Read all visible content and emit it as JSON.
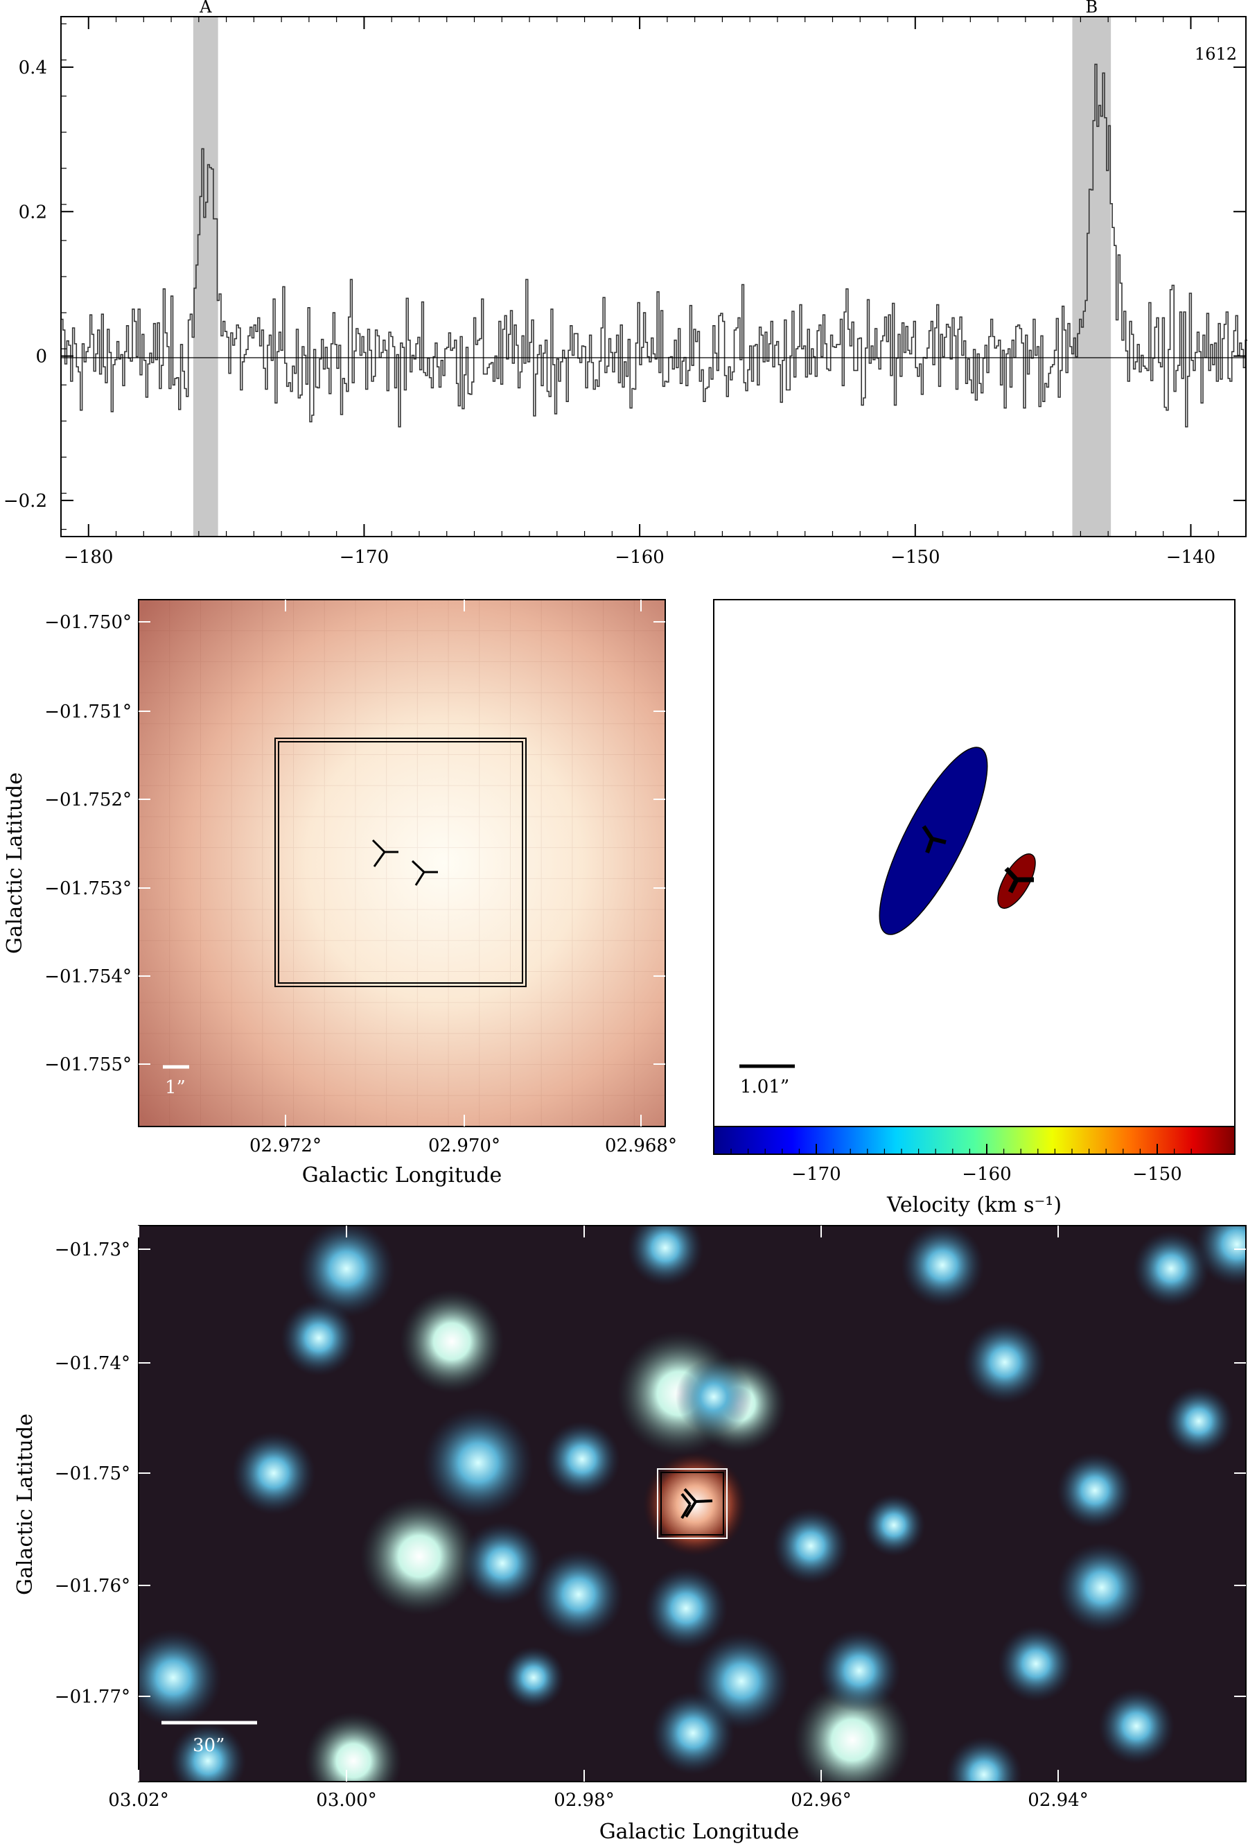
{
  "spectrum": {
    "corner_label": "1612",
    "x_ticks": [
      "−180",
      "−170",
      "−160",
      "−150",
      "−140"
    ],
    "y_ticks": [
      "0.4",
      "0.2",
      "0",
      "−0.2"
    ],
    "bands": [
      {
        "label": "A",
        "from": -176.2,
        "to": -175.3
      },
      {
        "label": "B",
        "from": -144.3,
        "to": -142.9
      }
    ]
  },
  "cutout_left": {
    "x_ticks": [
      "02.972°",
      "02.970°",
      "02.968°"
    ],
    "y_ticks": [
      "−01.750°",
      "−01.751°",
      "−01.752°",
      "−01.753°",
      "−01.754°",
      "−01.755°"
    ],
    "xlabel": "Galactic Longitude",
    "ylabel": "Galactic Latitude",
    "scale_label": "1”"
  },
  "velocity_panel": {
    "scale_label": "1.01”",
    "colorbar_ticks": [
      "−170",
      "−160",
      "−150"
    ],
    "colorbar_label": "Velocity (km s⁻¹)",
    "colors": [
      "#0000a0",
      "#00c8ff",
      "#ffff00",
      "#8b0000"
    ]
  },
  "field_image": {
    "x_ticks": [
      "03.02°",
      "03.00°",
      "02.98°",
      "02.96°",
      "02.94°"
    ],
    "y_ticks": [
      "−01.73°",
      "−01.74°",
      "−01.75°",
      "−01.76°",
      "−01.77°"
    ],
    "xlabel": "Galactic Longitude",
    "ylabel": "Galactic Latitude",
    "scale_label": "30”"
  },
  "chart_data": {
    "type": "line",
    "xlim": [
      -181,
      -138
    ],
    "ylim": [
      -0.25,
      0.47
    ],
    "x": [],
    "series": [
      {
        "values": []
      }
    ],
    "note_fill": "spectrum drawn as step histogram"
  }
}
